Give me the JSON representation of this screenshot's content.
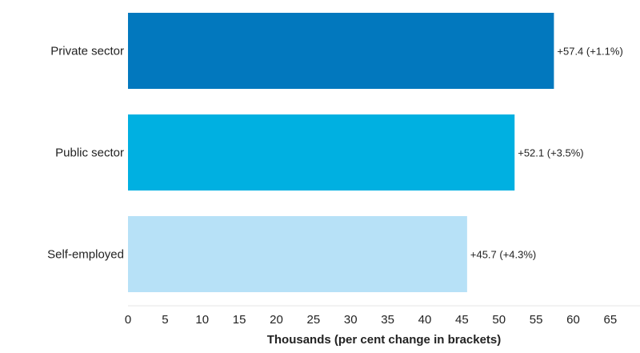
{
  "chart_data": {
    "type": "bar",
    "orientation": "horizontal",
    "categories": [
      "Private sector",
      "Public sector",
      "Self-employed"
    ],
    "values": [
      57.4,
      52.1,
      45.7
    ],
    "value_labels": [
      "+57.4 (+1.1%)",
      "+52.1 (+3.5%)",
      "+45.7 (+4.3%)"
    ],
    "colors": [
      "#0278be",
      "#00b0e1",
      "#b7e1f7"
    ],
    "xlabel": "Thousands (per cent change in brackets)",
    "xlim": [
      0,
      69
    ],
    "xticks": [
      0,
      5,
      10,
      15,
      20,
      25,
      30,
      35,
      40,
      45,
      50,
      55,
      60,
      65
    ],
    "grid": false
  }
}
